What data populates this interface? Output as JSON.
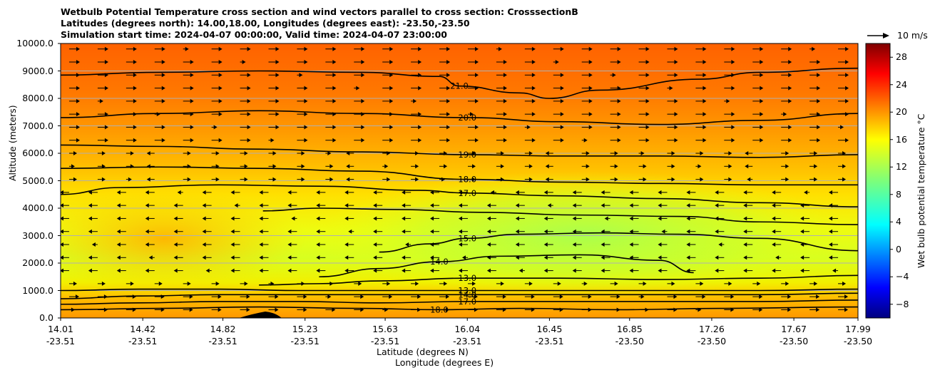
{
  "chart_data": {
    "type": "heatmap",
    "title_lines": [
      "Wetbulb Potential Temperature cross section and wind vectors parallel to cross section: CrosssectionB",
      "Latitudes (degrees north): 14.00,18.00, Longitudes (degrees east): -23.50,-23.50",
      "Simulation start time: 2024-04-07 00:00:00, Valid time: 2024-04-07 23:00:00"
    ],
    "ylabel": "Altitude (meters)",
    "xlabel": "Latitude (degrees N)",
    "xlabel2": "Longitude (degrees E)",
    "ylim": [
      0,
      10000
    ],
    "yticks": [
      "0.0",
      "1000.0",
      "2000.0",
      "3000.0",
      "4000.0",
      "5000.0",
      "6000.0",
      "7000.0",
      "8000.0",
      "9000.0",
      "10000.0"
    ],
    "xlim": [
      14.01,
      17.99
    ],
    "xticks": [
      {
        "lat": "14.01",
        "lon": "-23.51",
        "value": 14.01
      },
      {
        "lat": "14.42",
        "lon": "-23.51",
        "value": 14.42
      },
      {
        "lat": "14.82",
        "lon": "-23.51",
        "value": 14.82
      },
      {
        "lat": "15.23",
        "lon": "-23.51",
        "value": 15.23
      },
      {
        "lat": "15.63",
        "lon": "-23.51",
        "value": 15.63
      },
      {
        "lat": "16.04",
        "lon": "-23.51",
        "value": 16.04
      },
      {
        "lat": "16.45",
        "lon": "-23.51",
        "value": 16.45
      },
      {
        "lat": "16.85",
        "lon": "-23.50",
        "value": 16.85
      },
      {
        "lat": "17.26",
        "lon": "-23.50",
        "value": 17.26
      },
      {
        "lat": "17.67",
        "lon": "-23.50",
        "value": 17.67
      },
      {
        "lat": "17.99",
        "lon": "-23.50",
        "value": 17.99
      }
    ],
    "grid": "horizontal",
    "colorbar": {
      "label": "Wet bulb potential temperature $^\\circ$C",
      "colormap": "jet",
      "range": [
        -10,
        30
      ],
      "ticks": [
        "−8",
        "−4",
        "0",
        "4",
        "8",
        "12",
        "16",
        "20",
        "24",
        "28"
      ]
    },
    "quiver_key": "10 m/s",
    "contours": [
      {
        "label": "21.0",
        "x": [
          14.01,
          14.5,
          15.0,
          15.5,
          15.9,
          16.0,
          16.3,
          16.45,
          16.7,
          17.2,
          17.5,
          17.99
        ],
        "y": [
          8850,
          8950,
          9000,
          8950,
          8800,
          8450,
          8200,
          8000,
          8300,
          8700,
          8950,
          9100
        ]
      },
      {
        "label": "20.0",
        "x": [
          14.01,
          14.5,
          15.0,
          15.5,
          16.04,
          16.5,
          17.0,
          17.5,
          17.99
        ],
        "y": [
          7300,
          7450,
          7550,
          7450,
          7300,
          7150,
          7050,
          7200,
          7450
        ]
      },
      {
        "label": "19.0",
        "x": [
          14.01,
          14.5,
          15.0,
          15.5,
          16.04,
          16.5,
          17.0,
          17.5,
          17.99
        ],
        "y": [
          6300,
          6250,
          6150,
          6050,
          5950,
          5900,
          5900,
          5850,
          5950
        ]
      },
      {
        "label": "18.0",
        "x": [
          14.01,
          14.5,
          15.0,
          15.5,
          16.04,
          16.5,
          17.0,
          17.5,
          17.99
        ],
        "y": [
          5450,
          5500,
          5450,
          5350,
          5050,
          4950,
          4900,
          4850,
          4850
        ]
      },
      {
        "label": "17.0",
        "x": [
          14.01,
          14.3,
          14.8,
          15.3,
          15.8,
          16.04,
          16.5,
          17.0,
          17.5,
          17.99
        ],
        "y": [
          4500,
          4750,
          4850,
          4800,
          4650,
          4550,
          4450,
          4350,
          4200,
          4050
        ]
      },
      {
        "label": "",
        "x": [
          15.02,
          15.3,
          15.7,
          16.1,
          16.6,
          17.1,
          17.5,
          17.99
        ],
        "y": [
          3900,
          4000,
          3950,
          3850,
          3750,
          3700,
          3500,
          3400
        ]
      },
      {
        "label": "15.0",
        "x": [
          15.6,
          15.85,
          16.04,
          16.3,
          16.7,
          17.1,
          17.5,
          17.99
        ],
        "y": [
          2400,
          2700,
          2900,
          3050,
          3100,
          3050,
          2900,
          2450
        ]
      },
      {
        "label": "14.0",
        "x": [
          15.3,
          15.6,
          15.9,
          16.2,
          16.6,
          17.0,
          17.17
        ],
        "y": [
          1500,
          1800,
          2050,
          2250,
          2300,
          2100,
          1650
        ]
      },
      {
        "label": "13.0",
        "x": [
          15.0,
          15.3,
          15.6,
          16.04,
          16.5,
          17.0,
          17.5,
          17.99
        ],
        "y": [
          1200,
          1250,
          1350,
          1450,
          1450,
          1400,
          1450,
          1550
        ]
      },
      {
        "label": "13.0",
        "x": [
          14.01,
          14.4,
          14.8,
          15.2,
          15.6,
          16.04,
          16.5,
          17.0,
          17.5,
          17.99
        ],
        "y": [
          1000,
          1050,
          1050,
          1000,
          1000,
          1000,
          1000,
          1000,
          1000,
          1050
        ]
      },
      {
        "label": "14.0",
        "x": [
          14.01,
          14.4,
          14.8,
          15.2,
          15.6,
          16.04,
          16.5,
          17.0,
          17.5,
          17.99
        ],
        "y": [
          700,
          800,
          850,
          850,
          850,
          850,
          850,
          850,
          850,
          900
        ]
      },
      {
        "label": "17.0",
        "x": [
          14.01,
          14.4,
          14.8,
          15.2,
          15.6,
          16.04,
          16.5,
          17.0,
          17.5,
          17.99
        ],
        "y": [
          500,
          550,
          600,
          600,
          550,
          600,
          600,
          600,
          600,
          650
        ]
      },
      {
        "label": "18.0",
        "x": [
          14.01,
          14.5,
          15.0,
          15.5,
          15.9,
          16.3,
          16.8,
          17.3,
          17.99
        ],
        "y": [
          300,
          350,
          400,
          350,
          300,
          350,
          300,
          350,
          400
        ]
      }
    ]
  }
}
